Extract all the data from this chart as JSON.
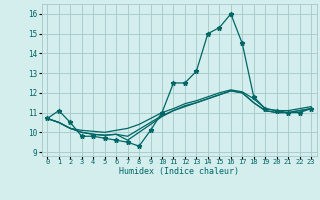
{
  "xlabel": "Humidex (Indice chaleur)",
  "ylabel": "",
  "xlim": [
    -0.5,
    23.5
  ],
  "ylim": [
    8.8,
    16.5
  ],
  "yticks": [
    9,
    10,
    11,
    12,
    13,
    14,
    15,
    16
  ],
  "xticks": [
    0,
    1,
    2,
    3,
    4,
    5,
    6,
    7,
    8,
    9,
    10,
    11,
    12,
    13,
    14,
    15,
    16,
    17,
    18,
    19,
    20,
    21,
    22,
    23
  ],
  "bg_color": "#d4eded",
  "grid_color": "#aacccc",
  "line_color": "#006666",
  "series": [
    [
      10.7,
      11.1,
      10.5,
      9.8,
      9.8,
      9.7,
      9.6,
      9.5,
      9.3,
      10.1,
      11.0,
      12.5,
      12.5,
      13.1,
      15.0,
      15.3,
      16.0,
      14.5,
      11.8,
      11.2,
      11.1,
      11.0,
      11.0,
      11.2
    ],
    [
      10.7,
      10.5,
      10.2,
      10.0,
      9.9,
      9.85,
      9.9,
      9.6,
      10.0,
      10.4,
      10.8,
      11.1,
      11.3,
      11.5,
      11.7,
      11.9,
      12.1,
      12.0,
      11.5,
      11.1,
      11.0,
      11.0,
      11.1,
      11.2
    ],
    [
      10.7,
      10.5,
      10.2,
      10.0,
      9.9,
      9.85,
      9.9,
      9.8,
      10.15,
      10.5,
      10.85,
      11.1,
      11.35,
      11.5,
      11.7,
      11.9,
      12.1,
      12.0,
      11.5,
      11.1,
      11.0,
      11.0,
      11.1,
      11.2
    ],
    [
      10.7,
      10.5,
      10.2,
      10.1,
      10.05,
      10.0,
      10.1,
      10.2,
      10.4,
      10.7,
      11.0,
      11.2,
      11.45,
      11.6,
      11.8,
      12.0,
      12.15,
      12.05,
      11.7,
      11.2,
      11.1,
      11.1,
      11.2,
      11.3
    ]
  ]
}
